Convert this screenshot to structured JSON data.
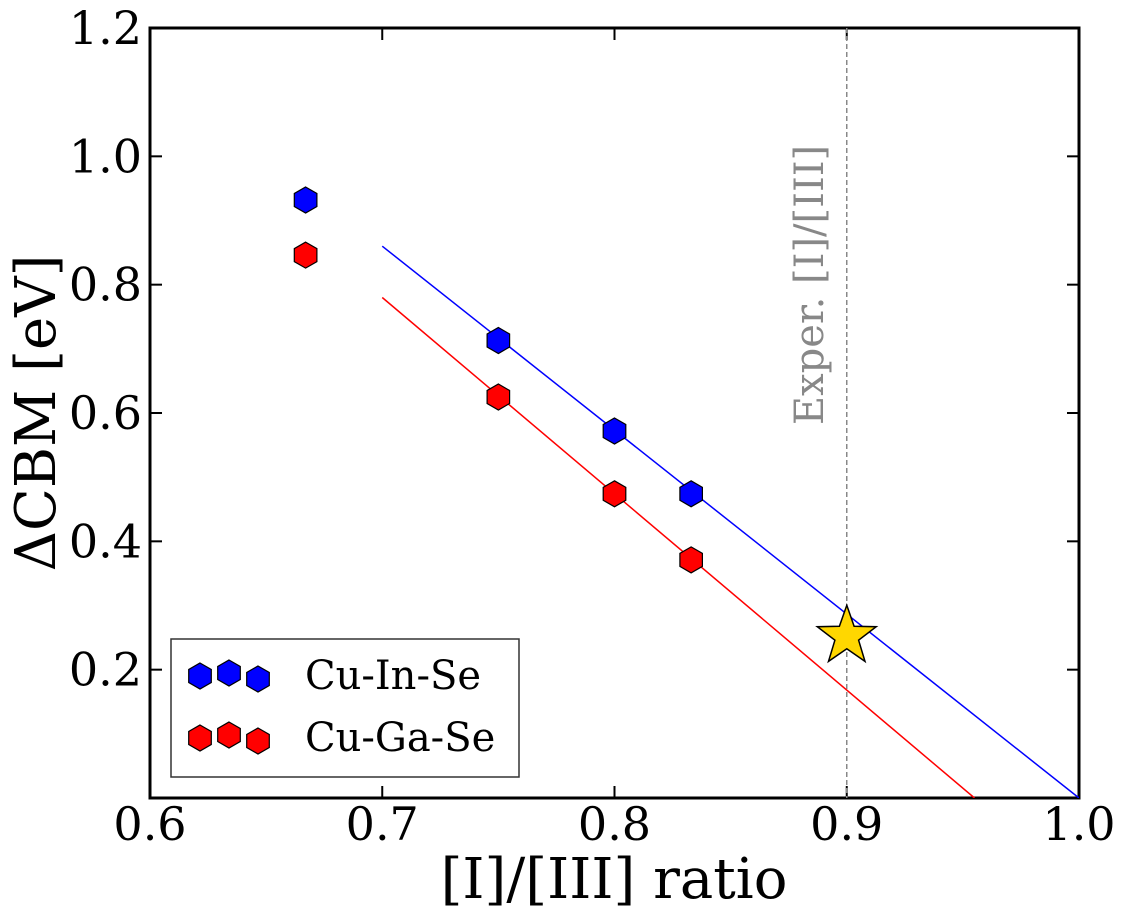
{
  "chart_data": {
    "type": "scatter",
    "xlabel": "[I]/[III] ratio",
    "ylabel": "ΔCBM [eV]",
    "xlim": [
      0.6,
      1.0
    ],
    "ylim": [
      0.0,
      1.2
    ],
    "grid": false,
    "x_ticks": [
      0.6,
      0.7,
      0.8,
      0.9,
      1.0
    ],
    "x_tick_labels": [
      "0.6",
      "0.7",
      "0.8",
      "0.9",
      "1.0"
    ],
    "y_ticks": [
      0.2,
      0.4,
      0.6,
      0.8,
      1.0,
      1.2
    ],
    "y_tick_labels": [
      "0.2",
      "0.4",
      "0.6",
      "0.8",
      "1.0",
      "1.2"
    ],
    "series": [
      {
        "name": "Cu-In-Se",
        "color": "#0000ff",
        "marker": "hexagon",
        "points": [
          {
            "x": 0.667,
            "y": 0.932
          },
          {
            "x": 0.75,
            "y": 0.713
          },
          {
            "x": 0.8,
            "y": 0.572
          },
          {
            "x": 0.833,
            "y": 0.474
          }
        ],
        "fit": {
          "x": [
            0.7,
            1.0
          ],
          "y": [
            0.86,
            0.0
          ]
        }
      },
      {
        "name": "Cu-Ga-Se",
        "color": "#ff0000",
        "marker": "hexagon",
        "points": [
          {
            "x": 0.667,
            "y": 0.846
          },
          {
            "x": 0.75,
            "y": 0.625
          },
          {
            "x": 0.8,
            "y": 0.474
          },
          {
            "x": 0.833,
            "y": 0.371
          }
        ],
        "fit": {
          "x": [
            0.7,
            0.955
          ],
          "y": [
            0.78,
            0.0
          ]
        }
      }
    ],
    "highlight": {
      "x": 0.9,
      "y": 0.252,
      "marker": "star",
      "color": "#ffd700"
    },
    "vline": {
      "x": 0.9,
      "label": "Exper. [I]/[III]",
      "color": "#888888"
    },
    "legend": {
      "location": "bottom-left",
      "entries": [
        "Cu-In-Se",
        "Cu-Ga-Se"
      ]
    }
  }
}
